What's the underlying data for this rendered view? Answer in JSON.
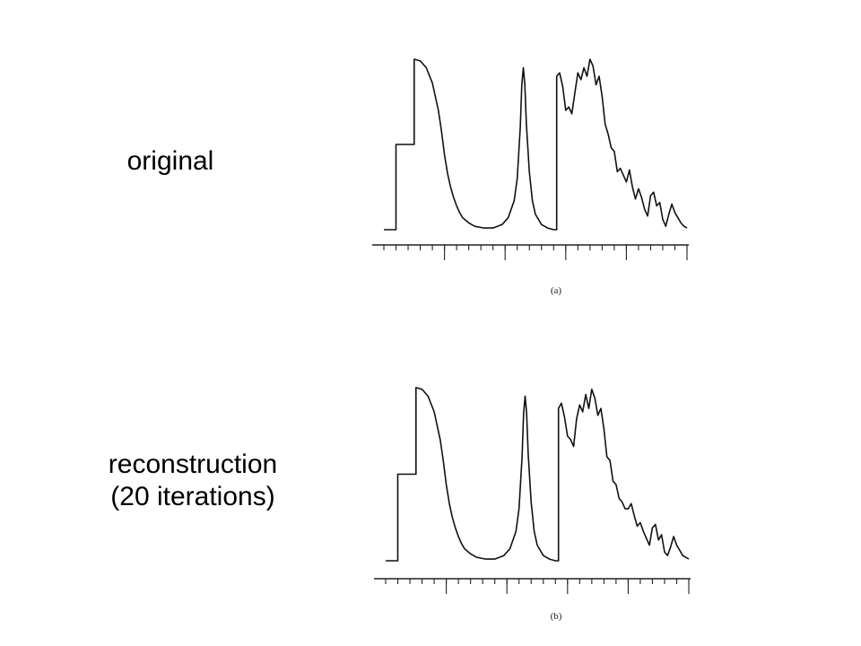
{
  "labels": {
    "top": "original",
    "bottom_line1": "reconstruction",
    "bottom_line2": "(20 iterations)"
  },
  "chart_data": [
    {
      "type": "line",
      "tag": "(a)",
      "xlim": [
        0,
        100
      ],
      "ylim": [
        0,
        100
      ],
      "major_ticks": [
        20,
        40,
        60,
        80,
        100
      ],
      "minor_step": 4,
      "series": [
        {
          "x": [
            0,
            4,
            4,
            10,
            10,
            12,
            14,
            16,
            18,
            19,
            20,
            21,
            22,
            23,
            24,
            25,
            26,
            28,
            30,
            33,
            36,
            39,
            41,
            43,
            44,
            45,
            45.5,
            46,
            46.5,
            47,
            48,
            49,
            50,
            52,
            54,
            56,
            57,
            57,
            58,
            59,
            60,
            61,
            62,
            63,
            64,
            65,
            66,
            67,
            68,
            69,
            70,
            71,
            72,
            73,
            74,
            75,
            76,
            77,
            78,
            79,
            80,
            81,
            82,
            83,
            84,
            85,
            86,
            87,
            88,
            89,
            90,
            91,
            92,
            93,
            94,
            95,
            96,
            97,
            98,
            99,
            100
          ],
          "y": [
            0,
            0,
            50,
            50,
            100,
            99,
            95,
            86,
            70,
            58,
            44,
            33,
            25,
            19,
            14,
            10,
            7,
            4,
            2,
            1,
            1,
            3,
            7,
            17,
            30,
            60,
            85,
            95,
            85,
            62,
            34,
            17,
            9,
            3,
            1,
            0,
            0,
            90,
            92,
            84,
            70,
            72,
            68,
            80,
            92,
            88,
            95,
            90,
            100,
            96,
            85,
            90,
            78,
            62,
            56,
            48,
            46,
            34,
            36,
            32,
            28,
            35,
            25,
            18,
            24,
            19,
            12,
            8,
            20,
            22,
            14,
            16,
            6,
            2,
            9,
            15,
            10,
            7,
            4,
            2,
            1
          ]
        }
      ]
    },
    {
      "type": "line",
      "tag": "(b)",
      "xlim": [
        0,
        100
      ],
      "ylim": [
        0,
        100
      ],
      "major_ticks": [
        20,
        40,
        60,
        80,
        100
      ],
      "minor_step": 4,
      "series": [
        {
          "x": [
            0,
            4,
            4,
            10,
            10,
            12,
            14,
            16,
            18,
            19,
            20,
            21,
            22,
            23,
            24,
            25,
            26,
            28,
            30,
            33,
            36,
            39,
            41,
            43,
            44,
            45,
            45.5,
            46,
            46.5,
            47,
            48,
            49,
            50,
            52,
            54,
            56,
            57,
            57,
            58,
            59,
            60,
            61,
            62,
            63,
            64,
            65,
            66,
            67,
            68,
            69,
            70,
            71,
            72,
            73,
            74,
            75,
            76,
            77,
            78,
            79,
            80,
            81,
            82,
            83,
            84,
            85,
            86,
            87,
            88,
            89,
            90,
            91,
            92,
            93,
            94,
            95,
            96,
            97,
            98,
            99,
            100
          ],
          "y": [
            0,
            0,
            50,
            50,
            100,
            99,
            95,
            86,
            70,
            58,
            44,
            33,
            25,
            19,
            14,
            10,
            7,
            4,
            2,
            1,
            1,
            3,
            7,
            17,
            30,
            60,
            85,
            95,
            85,
            62,
            34,
            17,
            9,
            3,
            1,
            0,
            0,
            88,
            91,
            83,
            72,
            70,
            66,
            82,
            90,
            86,
            96,
            88,
            99,
            94,
            84,
            88,
            76,
            60,
            58,
            46,
            44,
            36,
            34,
            30,
            30,
            33,
            26,
            20,
            22,
            17,
            13,
            9,
            19,
            21,
            12,
            15,
            5,
            3,
            8,
            14,
            9,
            6,
            3,
            2,
            1
          ]
        }
      ]
    }
  ]
}
